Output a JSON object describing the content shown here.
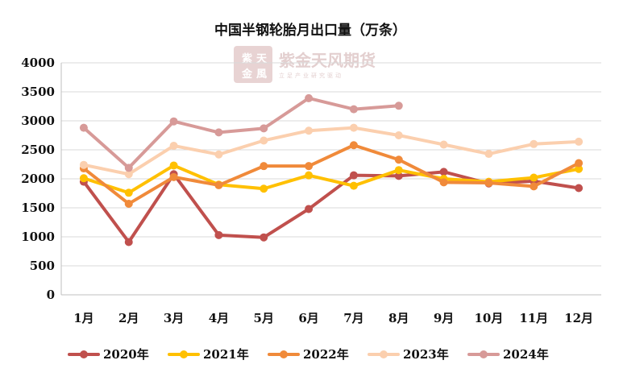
{
  "chart_data": {
    "type": "line",
    "title": "中国半钢轮胎月出口量（万条）",
    "xlabel": "",
    "ylabel": "",
    "categories": [
      "1月",
      "2月",
      "3月",
      "4月",
      "5月",
      "6月",
      "7月",
      "8月",
      "9月",
      "10月",
      "11月",
      "12月"
    ],
    "ylim": [
      0,
      4000
    ],
    "yticks": [
      0,
      500,
      1000,
      1500,
      2000,
      2500,
      3000,
      3500,
      4000
    ],
    "grid": true,
    "legend_position": "bottom",
    "series": [
      {
        "name": "2020年",
        "color": "#c0504d",
        "values": [
          1950,
          910,
          2080,
          1030,
          990,
          1480,
          2060,
          2050,
          2120,
          1920,
          1960,
          1840
        ]
      },
      {
        "name": "2021年",
        "color": "#ffc000",
        "values": [
          2010,
          1760,
          2230,
          1900,
          1830,
          2060,
          1880,
          2150,
          2000,
          1950,
          2020,
          2170
        ]
      },
      {
        "name": "2022年",
        "color": "#f08a3a",
        "values": [
          2180,
          1570,
          2030,
          1890,
          2220,
          2220,
          2580,
          2330,
          1940,
          1930,
          1870,
          2270
        ]
      },
      {
        "name": "2023年",
        "color": "#fbcfae",
        "values": [
          2240,
          2080,
          2570,
          2420,
          2660,
          2830,
          2880,
          2750,
          2590,
          2430,
          2600,
          2640
        ]
      },
      {
        "name": "2024年",
        "color": "#d79a98",
        "values": [
          2880,
          2190,
          2990,
          2800,
          2870,
          3390,
          3200,
          3260,
          null,
          null,
          null,
          null
        ]
      }
    ]
  },
  "watermark": {
    "brand": "紫金天风期货",
    "slogan": "立足产业研究驱动",
    "seal_chars": [
      "紫",
      "天",
      "金",
      "風"
    ]
  }
}
